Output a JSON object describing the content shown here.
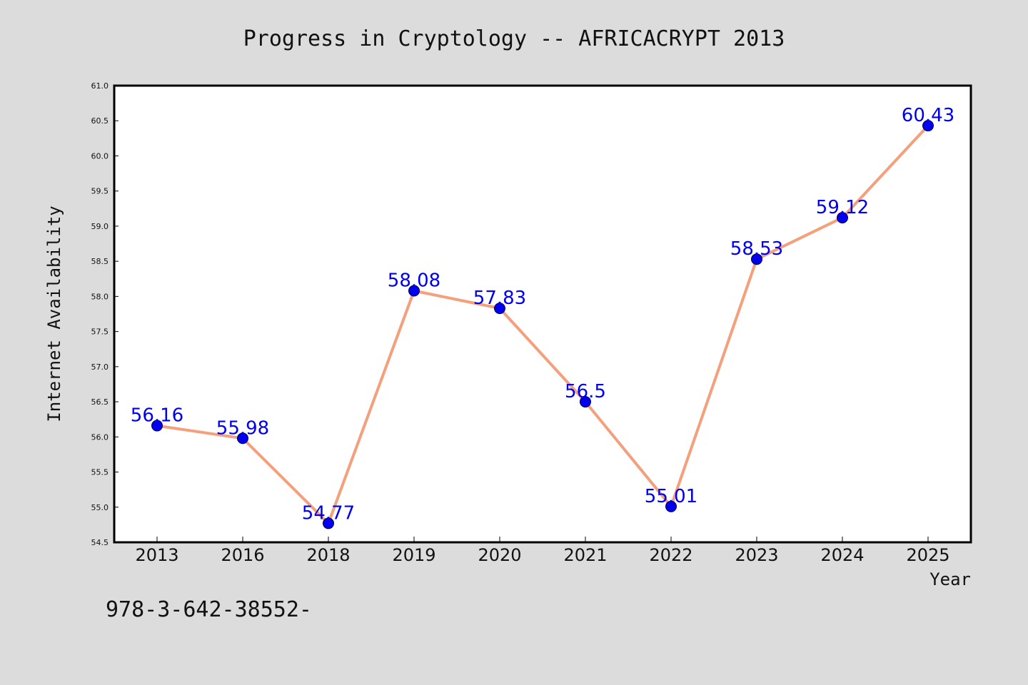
{
  "chart_data": {
    "type": "line",
    "title": "Progress in Cryptology -- AFRICACRYPT 2013",
    "xlabel": "Year",
    "ylabel": "Internet Availability",
    "categories": [
      "2013",
      "2016",
      "2018",
      "2019",
      "2020",
      "2021",
      "2022",
      "2023",
      "2024",
      "2025"
    ],
    "series": [
      {
        "values": [
          56.16,
          55.98,
          54.77,
          58.08,
          57.83,
          56.5,
          55.01,
          58.53,
          59.12,
          60.43
        ]
      }
    ],
    "data_labels": [
      "56.16",
      "55.98",
      "54.77",
      "58.08",
      "57.83",
      "56.5",
      "55.01",
      "58.53",
      "59.12",
      "60.43"
    ],
    "ylim": [
      54.5,
      61.0
    ],
    "yticks": [
      "54.5",
      "55.0",
      "55.5",
      "56.0",
      "56.5",
      "57.0",
      "57.5",
      "58.0",
      "58.5",
      "59.0",
      "59.5",
      "60.0",
      "60.5",
      "61.0"
    ],
    "grid": false,
    "legend": "none",
    "colors": {
      "line": "#f4a07c",
      "marker": "#0000ee",
      "label": "#0000ee",
      "background": "#dcdcdc",
      "plot_background": "#ffffff"
    }
  },
  "footnote": "978-3-642-38552-"
}
